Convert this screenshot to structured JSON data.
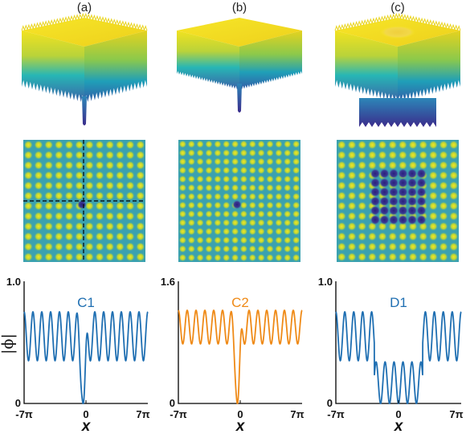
{
  "panels": [
    {
      "label": "(a)",
      "series_name": "C1",
      "color": "#1f6fb2",
      "ymax": "1.0",
      "ymin": "0",
      "ylim": [
        0,
        1.0
      ],
      "peak": 0.75,
      "base": 0.35,
      "dip": "center-single",
      "surface": "sparse-spiky",
      "map_type": "single-defect",
      "crosshair": true
    },
    {
      "label": "(b)",
      "series_name": "C2",
      "color": "#ef8a17",
      "ymax": "1.6",
      "ymin": "0",
      "ylim": [
        0,
        1.6
      ],
      "peak": 1.22,
      "base": 0.78,
      "dip": "center-single",
      "surface": "dense-smooth",
      "map_type": "single-defect",
      "crosshair": false
    },
    {
      "label": "(c)",
      "series_name": "D1",
      "color": "#1f6fb2",
      "ymax": "1.0",
      "ymin": "0",
      "ylim": [
        0,
        1.0
      ],
      "peak": 0.75,
      "base": 0.35,
      "dip": "wide-flat",
      "surface": "crater",
      "map_type": "block-defect",
      "crosshair": false
    }
  ],
  "axis": {
    "x_min_label": "-7π",
    "x_zero_label": "0",
    "x_max_label": "7π",
    "x_label": "x",
    "y_label": "|ϕ|"
  },
  "colors": {
    "surface_top": "#f2e21f",
    "surface_mid": "#27b6b5",
    "surface_bottom": "#3c2c8e",
    "map_bg": "#3aa1b0",
    "map_spot": "#f3df22",
    "map_defect": "#3b2f8f"
  },
  "chart_data": [
    {
      "type": "line",
      "panel": "(a)",
      "series": [
        {
          "name": "C1"
        }
      ],
      "xlabel": "x",
      "ylabel": "|ϕ|",
      "xlim_labels": [
        "-7π",
        "0",
        "7π"
      ],
      "ylim": [
        0,
        1.0
      ],
      "peak": 0.75,
      "trough": 0.35,
      "dip_min": 0.0
    },
    {
      "type": "line",
      "panel": "(b)",
      "series": [
        {
          "name": "C2"
        }
      ],
      "xlabel": "x",
      "xlim_labels": [
        "-7π",
        "0",
        "7π"
      ],
      "ylim": [
        0,
        1.6
      ],
      "peak": 1.22,
      "trough": 0.78,
      "dip_min": 0.0
    },
    {
      "type": "line",
      "panel": "(c)",
      "series": [
        {
          "name": "D1"
        }
      ],
      "xlabel": "x",
      "xlim_labels": [
        "-7π",
        "0",
        "7π"
      ],
      "ylim": [
        0,
        1.0
      ],
      "peak": 0.75,
      "trough": 0.35,
      "dip_min": 0.0
    }
  ]
}
